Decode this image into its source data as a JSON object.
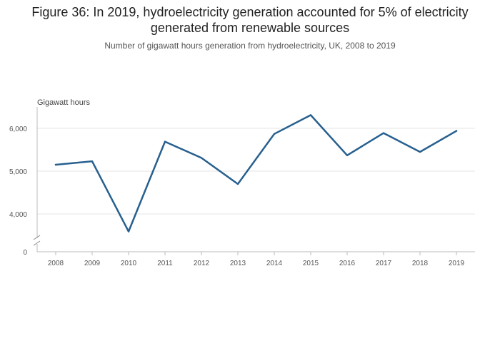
{
  "title": "Figure 36: In 2019, hydroelectricity generation accounted for 5% of electricity generated from renewable sources",
  "subtitle": "Number of gigawatt hours generation from hydroelectricity, UK, 2008 to 2019",
  "colors": {
    "line": "#27608f",
    "grid": "#e6e6e6",
    "axis": "#bbbbbb"
  },
  "chart_data": {
    "type": "line",
    "title": "Figure 36: In 2019, hydroelectricity generation accounted for 5% of electricity generated from renewable sources",
    "subtitle": "Number of gigawatt hours generation from hydroelectricity, UK, 2008 to 2019",
    "xlabel": "",
    "ylabel": "Gigawatt hours",
    "x": [
      "2008",
      "2009",
      "2010",
      "2011",
      "2012",
      "2013",
      "2014",
      "2015",
      "2016",
      "2017",
      "2018",
      "2019"
    ],
    "series": [
      {
        "name": "Hydroelectricity generation",
        "values": [
          5150,
          5230,
          3590,
          5690,
          5310,
          4700,
          5870,
          6310,
          5370,
          5890,
          5450,
          5940
        ]
      }
    ],
    "ylim": [
      3500,
      6500
    ],
    "yticks": [
      {
        "value": 4000,
        "label": "4,000"
      },
      {
        "value": 5000,
        "label": "5,000"
      },
      {
        "value": 6000,
        "label": "6,000"
      }
    ],
    "axis_break": {
      "label": "0"
    },
    "grid": true
  }
}
